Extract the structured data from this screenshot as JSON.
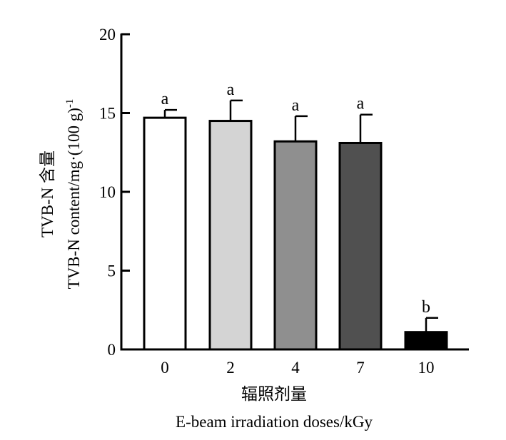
{
  "chart_data": {
    "type": "bar",
    "title": "",
    "xlabel_cn": "辐照剂量",
    "xlabel_en": "E-beam irradiation doses/kGy",
    "ylabel_cn": "TVB-N 含量",
    "ylabel_en": "TVB-N  content/mg·(100 g)",
    "ylabel_en_sup": "-1",
    "ylim": [
      0,
      20
    ],
    "yticks": [
      0,
      5,
      10,
      15,
      20
    ],
    "ytick_labels": [
      "0",
      "5",
      "10",
      "15",
      "20"
    ],
    "categories": [
      "0",
      "2",
      "4",
      "7",
      "10"
    ],
    "values": [
      14.7,
      14.5,
      13.2,
      13.1,
      1.1
    ],
    "errors": [
      0.5,
      1.3,
      1.6,
      1.8,
      0.9
    ],
    "significance": [
      "a",
      "a",
      "a",
      "a",
      "b"
    ],
    "bar_colors": [
      "#ffffff",
      "#d4d4d4",
      "#8f8f8f",
      "#505050",
      "#000000"
    ],
    "grid": false,
    "legend": "none"
  }
}
